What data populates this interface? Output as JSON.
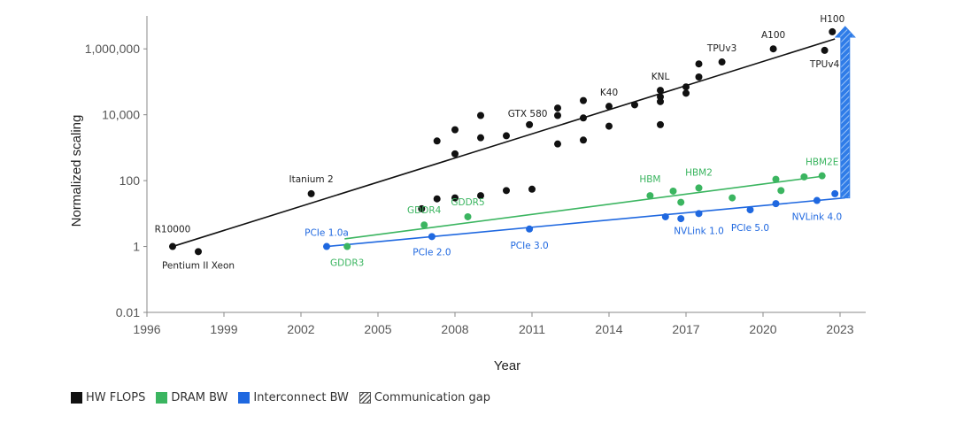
{
  "chart_data": {
    "type": "scatter",
    "xlabel": "Year",
    "ylabel": "Normalized scaling",
    "y_scale": "log",
    "xlim": [
      1996,
      2024
    ],
    "ylim": [
      0.01,
      10000000
    ],
    "x_ticks": [
      1996,
      1999,
      2002,
      2005,
      2008,
      2011,
      2014,
      2017,
      2020,
      2023
    ],
    "x_tick_labels": [
      "1996",
      "1999",
      "2002",
      "2005",
      "2008",
      "2011",
      "2014",
      "2017",
      "2020",
      "2023"
    ],
    "y_ticks": [
      0.01,
      1,
      100,
      10000,
      1000000
    ],
    "y_tick_labels": [
      "0.01",
      "1",
      "100",
      "10,000",
      "1,000,000"
    ],
    "legend_position": "bottom-left",
    "grid": false,
    "series": [
      {
        "name": "HW FLOPS",
        "color": "#111111",
        "trend": {
          "x": [
            1997,
            2022.8
          ],
          "y": [
            1,
            2000000
          ]
        },
        "points": [
          {
            "x": 1997,
            "y": 1,
            "label": "R10000"
          },
          {
            "x": 1998,
            "y": 0.7,
            "label": "Pentium II Xeon"
          },
          {
            "x": 2002.4,
            "y": 40,
            "label": "Itanium 2"
          },
          {
            "x": 2006.7,
            "y": 14
          },
          {
            "x": 2007.3,
            "y": 28
          },
          {
            "x": 2007.3,
            "y": 1600
          },
          {
            "x": 2008,
            "y": 30
          },
          {
            "x": 2008,
            "y": 650
          },
          {
            "x": 2008,
            "y": 3500
          },
          {
            "x": 2009,
            "y": 35
          },
          {
            "x": 2009,
            "y": 2000
          },
          {
            "x": 2009,
            "y": 9500
          },
          {
            "x": 2010,
            "y": 50
          },
          {
            "x": 2010,
            "y": 2300
          },
          {
            "x": 2010.9,
            "y": 5000,
            "label": "GTX 580"
          },
          {
            "x": 2011,
            "y": 55
          },
          {
            "x": 2012,
            "y": 1300
          },
          {
            "x": 2012,
            "y": 9500
          },
          {
            "x": 2012,
            "y": 16000
          },
          {
            "x": 2013,
            "y": 1700
          },
          {
            "x": 2013,
            "y": 8000
          },
          {
            "x": 2013,
            "y": 27000
          },
          {
            "x": 2014,
            "y": 4500
          },
          {
            "x": 2014,
            "y": 18000,
            "label": "K40"
          },
          {
            "x": 2015,
            "y": 20000
          },
          {
            "x": 2016,
            "y": 5000
          },
          {
            "x": 2016,
            "y": 25000
          },
          {
            "x": 2016,
            "y": 35000
          },
          {
            "x": 2016,
            "y": 55000,
            "label": "KNL"
          },
          {
            "x": 2017,
            "y": 45000
          },
          {
            "x": 2017,
            "y": 70000
          },
          {
            "x": 2017.5,
            "y": 140000
          },
          {
            "x": 2017.5,
            "y": 350000
          },
          {
            "x": 2018.4,
            "y": 400000,
            "label": "TPUv3"
          },
          {
            "x": 2020.4,
            "y": 1000000,
            "label": "A100"
          },
          {
            "x": 2022.4,
            "y": 900000,
            "label": "TPUv4"
          },
          {
            "x": 2022.7,
            "y": 3300000,
            "label": "H100"
          }
        ]
      },
      {
        "name": "DRAM BW",
        "color": "#3bb560",
        "trend": {
          "x": [
            2003.7,
            2022.3
          ],
          "y": [
            1.7,
            135
          ]
        },
        "points": [
          {
            "x": 2003.8,
            "y": 1,
            "label": "GDDR3"
          },
          {
            "x": 2006.8,
            "y": 4.5,
            "label": "GDDR4"
          },
          {
            "x": 2008.5,
            "y": 8,
            "label": "GDDR5"
          },
          {
            "x": 2015.6,
            "y": 35,
            "label": "HBM"
          },
          {
            "x": 2016.5,
            "y": 48
          },
          {
            "x": 2016.8,
            "y": 22
          },
          {
            "x": 2017.5,
            "y": 60,
            "label": "HBM2"
          },
          {
            "x": 2018.8,
            "y": 30
          },
          {
            "x": 2020.5,
            "y": 110
          },
          {
            "x": 2020.7,
            "y": 50
          },
          {
            "x": 2021.6,
            "y": 130
          },
          {
            "x": 2022.3,
            "y": 140,
            "label": "HBM2E"
          }
        ]
      },
      {
        "name": "Interconnect BW",
        "color": "#1f68e0",
        "trend": {
          "x": [
            2003,
            2023.2
          ],
          "y": [
            1,
            30
          ]
        },
        "points": [
          {
            "x": 2003,
            "y": 1,
            "label": "PCIe 1.0a"
          },
          {
            "x": 2007.1,
            "y": 2,
            "label": "PCIe 2.0"
          },
          {
            "x": 2010.9,
            "y": 3.4,
            "label": "PCIe 3.0"
          },
          {
            "x": 2016.2,
            "y": 8
          },
          {
            "x": 2016.8,
            "y": 7
          },
          {
            "x": 2017.5,
            "y": 10,
            "label": "NVLink 1.0"
          },
          {
            "x": 2019.5,
            "y": 13,
            "label": "PCIe 5.0"
          },
          {
            "x": 2020.5,
            "y": 20
          },
          {
            "x": 2022.1,
            "y": 25,
            "label": "NVLink 4.0"
          },
          {
            "x": 2022.8,
            "y": 40
          }
        ]
      }
    ],
    "gap_arrow": {
      "name": "Communication gap",
      "x": 2023.2,
      "from_y": 30,
      "to_y": 2000000
    }
  },
  "legend": {
    "items": [
      {
        "key": "flops",
        "label": "HW FLOPS",
        "color": "#111111"
      },
      {
        "key": "dram",
        "label": "DRAM BW",
        "color": "#3bb560"
      },
      {
        "key": "interconnect",
        "label": "Interconnect BW",
        "color": "#1f68e0"
      },
      {
        "key": "gap",
        "label": "Communication gap",
        "color": ""
      }
    ]
  }
}
